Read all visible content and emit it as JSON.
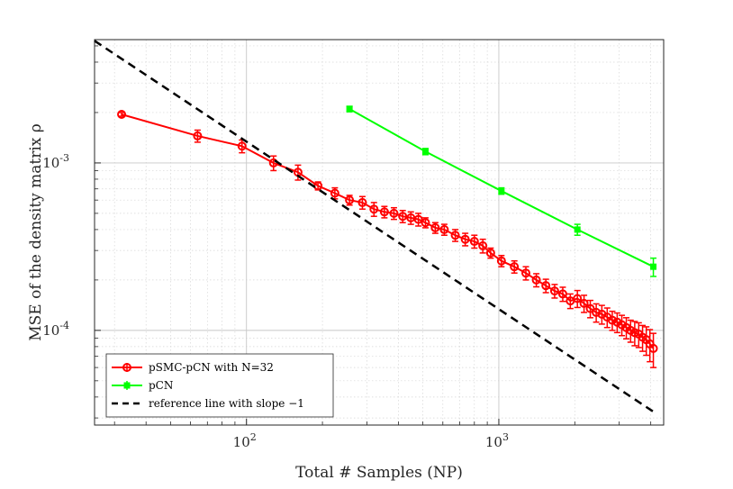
{
  "chart_data": {
    "type": "line",
    "xscale": "log",
    "yscale": "log",
    "xlim": [
      25,
      4500
    ],
    "ylim": [
      2.72e-05,
      0.00545
    ],
    "xlabel": "Total # Samples (NP)",
    "ylabel": "MSE of the density matrix ρ",
    "grid": true,
    "legend_position": "bottom-left",
    "x_ticks": [
      {
        "value": 100,
        "base": "10",
        "exp": "2"
      },
      {
        "value": 1000,
        "base": "10",
        "exp": "3"
      }
    ],
    "y_ticks": [
      {
        "value": 0.0001,
        "base": "10",
        "exp": "-4"
      },
      {
        "value": 0.001,
        "base": "10",
        "exp": "-3"
      }
    ],
    "series": [
      {
        "name": "pSMC-pCN with N=32",
        "color": "#ff0000",
        "marker": "circle",
        "x": [
          32,
          64,
          96,
          128,
          160,
          192,
          224,
          256,
          288,
          320,
          352,
          384,
          416,
          448,
          480,
          512,
          560,
          608,
          672,
          736,
          800,
          864,
          928,
          1024,
          1152,
          1280,
          1408,
          1536,
          1664,
          1792,
          1920,
          2048,
          2176,
          2304,
          2432,
          2560,
          2688,
          2816,
          2944,
          3072,
          3200,
          3328,
          3456,
          3584,
          3712,
          3840,
          3968,
          4096
        ],
        "y": [
          0.00195,
          0.00145,
          0.00126,
          0.001,
          0.00088,
          0.00073,
          0.00066,
          0.0006,
          0.00058,
          0.00053,
          0.00051,
          0.0005,
          0.00048,
          0.00047,
          0.00046,
          0.00044,
          0.00041,
          0.0004,
          0.00037,
          0.00035,
          0.00034,
          0.00032,
          0.00029,
          0.00026,
          0.00024,
          0.00022,
          0.0002,
          0.000185,
          0.000172,
          0.000165,
          0.00015,
          0.000155,
          0.000145,
          0.000135,
          0.000128,
          0.000125,
          0.00012,
          0.000115,
          0.000112,
          0.000108,
          0.000104,
          0.0001,
          9.7e-05,
          9.5e-05,
          9.1e-05,
          8.8e-05,
          8.3e-05,
          7.8e-05
        ],
        "err": [
          5e-05,
          0.00012,
          0.00011,
          0.0001,
          9e-05,
          4e-05,
          5e-05,
          4e-05,
          5e-05,
          5e-05,
          4e-05,
          4e-05,
          4e-05,
          4e-05,
          4e-05,
          3e-05,
          3e-05,
          3e-05,
          3e-05,
          3e-05,
          3e-05,
          3e-05,
          2e-05,
          2e-05,
          2e-05,
          2e-05,
          1.8e-05,
          1.7e-05,
          1.6e-05,
          1.6e-05,
          1.5e-05,
          1.8e-05,
          1.7e-05,
          1.6e-05,
          1.6e-05,
          1.6e-05,
          1.6e-05,
          1.5e-05,
          1.5e-05,
          1.5e-05,
          1.5e-05,
          1.5e-05,
          1.6e-05,
          1.6e-05,
          1.6e-05,
          1.7e-05,
          1.8e-05,
          1.8e-05
        ]
      },
      {
        "name": "pCN",
        "color": "#00ff00",
        "marker": "square",
        "x": [
          256,
          512,
          1024,
          2048,
          4096
        ],
        "y": [
          0.0021,
          0.00117,
          0.00068,
          0.0004,
          0.00024
        ],
        "err": [
          8e-05,
          5e-05,
          3e-05,
          3e-05,
          3e-05
        ]
      },
      {
        "name": "reference line with slope −1",
        "color": "#000000",
        "dashed": true,
        "x": [
          25,
          4096
        ],
        "y": [
          0.00536,
          3.27e-05
        ]
      }
    ]
  }
}
